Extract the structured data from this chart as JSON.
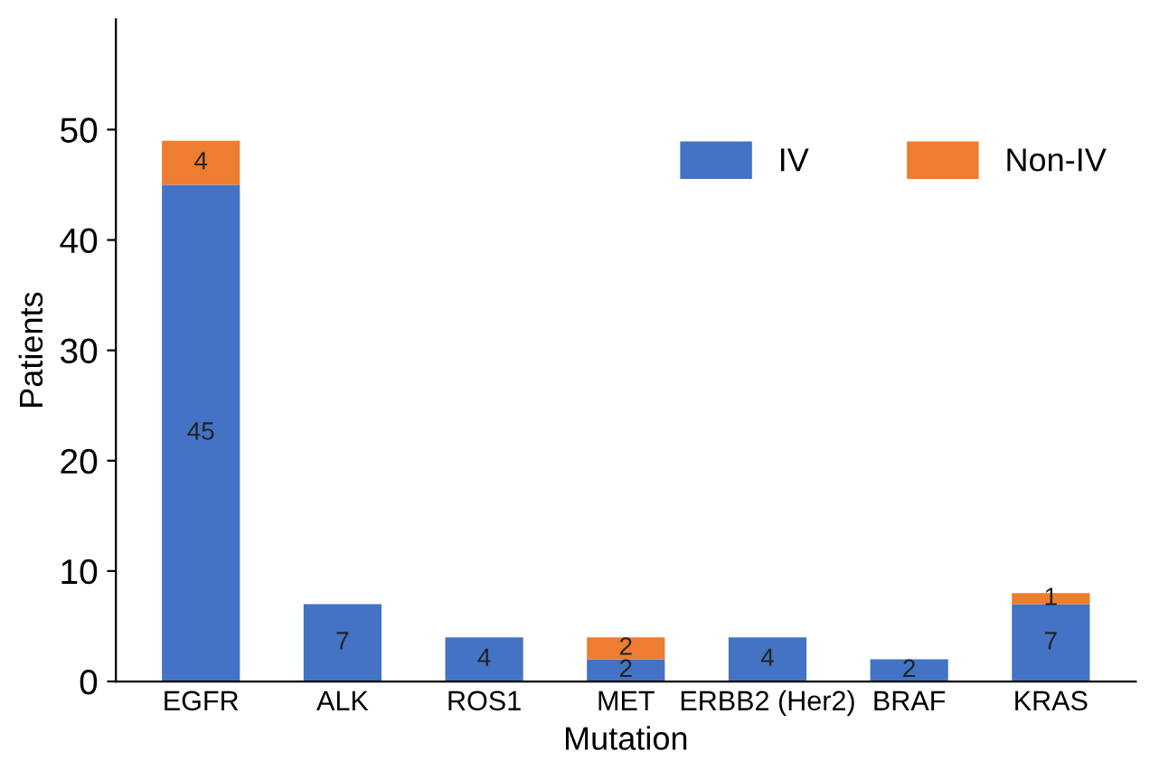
{
  "chart_data": {
    "type": "bar",
    "stacked": true,
    "xlabel": "Mutation",
    "ylabel": "Patients",
    "categories": [
      "EGFR",
      "ALK",
      "ROS1",
      "MET",
      "ERBB2 (Her2)",
      "BRAF",
      "KRAS"
    ],
    "series": [
      {
        "name": "IV",
        "color": "#4472c4",
        "values": [
          45,
          7,
          4,
          2,
          4,
          2,
          7
        ],
        "value_labels": [
          "45",
          "7",
          "4",
          "2",
          "4",
          "2",
          "7"
        ]
      },
      {
        "name": "Non-IV",
        "color": "#ed7d31",
        "values": [
          4,
          0,
          0,
          2,
          0,
          0,
          1
        ],
        "value_labels": [
          "4",
          null,
          null,
          "2",
          null,
          null,
          "1"
        ]
      }
    ],
    "ylim": [
      0,
      60
    ],
    "yticks": [
      0,
      10,
      20,
      30,
      40,
      50
    ],
    "grid": false,
    "legend": "top right"
  }
}
